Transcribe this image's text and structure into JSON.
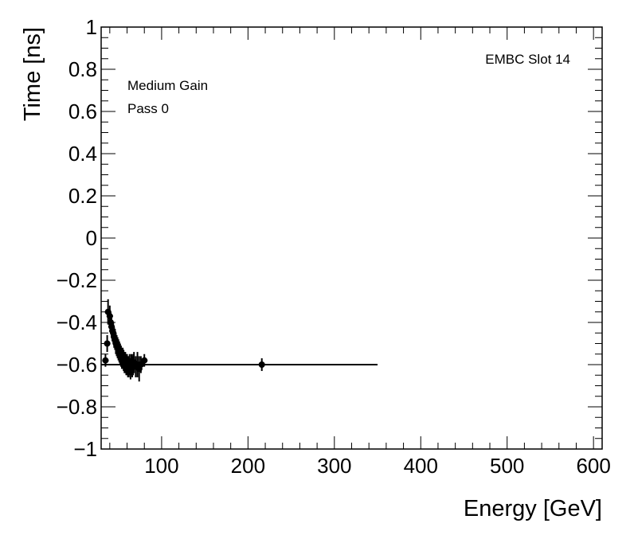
{
  "chart_data": {
    "type": "scatter",
    "xlabel": "Energy [GeV]",
    "ylabel": "Time [ns]",
    "xlim": [
      30,
      610
    ],
    "ylim": [
      -1,
      1
    ],
    "xticks": [
      100,
      200,
      300,
      400,
      500,
      600
    ],
    "yticks": [
      -1,
      -0.8,
      -0.6,
      -0.4,
      -0.2,
      0,
      0.2,
      0.4,
      0.6,
      0.8,
      1
    ],
    "ytick_labels": [
      "−1",
      "−0.8",
      "−0.6",
      "−0.4",
      "−0.2",
      "0",
      "0.2",
      "0.4",
      "0.6",
      "0.8",
      "1"
    ],
    "grid": false,
    "annotations": [
      "EMBC Slot 14",
      "Medium Gain",
      "Pass 0"
    ],
    "reference_line": {
      "x": [
        30,
        350
      ],
      "y": -0.6
    },
    "points": [
      {
        "x": 35,
        "y": -0.58,
        "err": 0.03
      },
      {
        "x": 37,
        "y": -0.5,
        "err": 0.04
      },
      {
        "x": 38,
        "y": -0.35,
        "err": 0.06
      },
      {
        "x": 40,
        "y": -0.37,
        "err": 0.05
      },
      {
        "x": 41,
        "y": -0.4,
        "err": 0.05
      },
      {
        "x": 42,
        "y": -0.42,
        "err": 0.05
      },
      {
        "x": 43,
        "y": -0.44,
        "err": 0.05
      },
      {
        "x": 44,
        "y": -0.45,
        "err": 0.05
      },
      {
        "x": 45,
        "y": -0.47,
        "err": 0.05
      },
      {
        "x": 46,
        "y": -0.48,
        "err": 0.05
      },
      {
        "x": 47,
        "y": -0.5,
        "err": 0.05
      },
      {
        "x": 48,
        "y": -0.51,
        "err": 0.05
      },
      {
        "x": 49,
        "y": -0.52,
        "err": 0.05
      },
      {
        "x": 50,
        "y": -0.53,
        "err": 0.05
      },
      {
        "x": 51,
        "y": -0.54,
        "err": 0.05
      },
      {
        "x": 52,
        "y": -0.55,
        "err": 0.05
      },
      {
        "x": 53,
        "y": -0.56,
        "err": 0.05
      },
      {
        "x": 54,
        "y": -0.57,
        "err": 0.05
      },
      {
        "x": 55,
        "y": -0.57,
        "err": 0.05
      },
      {
        "x": 56,
        "y": -0.58,
        "err": 0.05
      },
      {
        "x": 57,
        "y": -0.59,
        "err": 0.05
      },
      {
        "x": 58,
        "y": -0.59,
        "err": 0.05
      },
      {
        "x": 59,
        "y": -0.6,
        "err": 0.05
      },
      {
        "x": 60,
        "y": -0.6,
        "err": 0.05
      },
      {
        "x": 61,
        "y": -0.61,
        "err": 0.05
      },
      {
        "x": 62,
        "y": -0.61,
        "err": 0.05
      },
      {
        "x": 63,
        "y": -0.6,
        "err": 0.05
      },
      {
        "x": 64,
        "y": -0.62,
        "err": 0.05
      },
      {
        "x": 65,
        "y": -0.6,
        "err": 0.05
      },
      {
        "x": 66,
        "y": -0.61,
        "err": 0.05
      },
      {
        "x": 67,
        "y": -0.6,
        "err": 0.05
      },
      {
        "x": 68,
        "y": -0.59,
        "err": 0.05
      },
      {
        "x": 70,
        "y": -0.61,
        "err": 0.05
      },
      {
        "x": 72,
        "y": -0.6,
        "err": 0.06
      },
      {
        "x": 74,
        "y": -0.62,
        "err": 0.06
      },
      {
        "x": 76,
        "y": -0.6,
        "err": 0.04
      },
      {
        "x": 80,
        "y": -0.58,
        "err": 0.03
      },
      {
        "x": 216,
        "y": -0.6,
        "err": 0.03
      }
    ]
  }
}
